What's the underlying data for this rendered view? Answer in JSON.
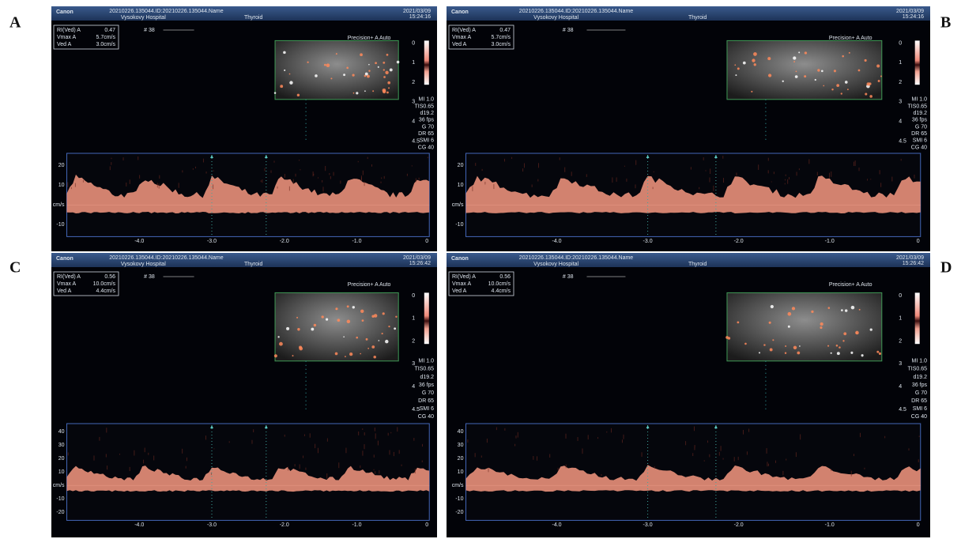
{
  "panels": [
    {
      "label": "A",
      "brand": "Canon",
      "patient": "20210226.135044.ID:20210226.135044.Name",
      "hospital": "Vysokovy Hospital",
      "exam": "Thyroid",
      "date": "2021/03/09",
      "time": "15:24:16",
      "scale": "# 38",
      "mode": "Precision+ A Auto",
      "readings": [
        [
          "RI(Ved) A",
          "0.47"
        ],
        [
          "Vmax A",
          "5.7cm/s"
        ],
        [
          "Ved A",
          "3.0cm/s"
        ]
      ],
      "depth": [
        "0",
        "1",
        "2",
        "3",
        "4",
        "4.5"
      ],
      "params": [
        "MI 1.0",
        "TIS0.65",
        "d19.2",
        "36 fps",
        "G 70",
        "DR 65",
        "SMI 6",
        "CG 40"
      ],
      "velocity": [
        "20",
        "10",
        "cm/s",
        "-10"
      ],
      "time_axis": [
        "-4.0",
        "-3.0",
        "-2.0",
        "-1.0",
        "0"
      ]
    },
    {
      "label": "B",
      "brand": "Canon",
      "patient": "20210226.135044.ID:20210226.135044.Name",
      "hospital": "Vysokovy Hospital",
      "exam": "Thyroid",
      "date": "2021/03/09",
      "time": "15:24:16",
      "scale": "# 38",
      "mode": "Precision+ A Auto",
      "readings": [
        [
          "RI(Ved) A",
          "0.47"
        ],
        [
          "Vmax A",
          "5.7cm/s"
        ],
        [
          "Ved A",
          "3.0cm/s"
        ]
      ],
      "depth": [
        "0",
        "1",
        "2",
        "3",
        "4",
        "4.5"
      ],
      "params": [
        "MI 1.0",
        "TIS0.65",
        "d19.2",
        "36 fps",
        "G 70",
        "DR 65",
        "SMI 6",
        "CG 40"
      ],
      "velocity": [
        "20",
        "10",
        "cm/s",
        "-10"
      ],
      "time_axis": [
        "-4.0",
        "-3.0",
        "-2.0",
        "-1.0",
        "0"
      ]
    },
    {
      "label": "C",
      "brand": "Canon",
      "patient": "20210226.135044.ID:20210226.135044.Name",
      "hospital": "Vysokovy Hospital",
      "exam": "Thyroid",
      "date": "2021/03/09",
      "time": "15:26:42",
      "scale": "# 38",
      "mode": "Precision+ A Auto",
      "readings": [
        [
          "RI(Ved) A",
          "0.56"
        ],
        [
          "Vmax A",
          "10.0cm/s"
        ],
        [
          "Ved A",
          "4.4cm/s"
        ]
      ],
      "depth": [
        "0",
        "1",
        "2",
        "3",
        "4",
        "4.5"
      ],
      "params": [
        "MI 1.0",
        "TIS0.65",
        "d19.2",
        "36 fps",
        "G 70",
        "DR 65",
        "SMI 6",
        "CG 40"
      ],
      "velocity": [
        "40",
        "30",
        "20",
        "10",
        "cm/s",
        "-10",
        "-20"
      ],
      "time_axis": [
        "-4.0",
        "-3.0",
        "-2.0",
        "-1.0",
        "0"
      ]
    },
    {
      "label": "D",
      "brand": "Canon",
      "patient": "20210226.135044.ID:20210226.135044.Name",
      "hospital": "Vysokovy Hospital",
      "exam": "Thyroid",
      "date": "2021/03/09",
      "time": "15:26:42",
      "scale": "# 38",
      "mode": "Precision+ A Auto",
      "readings": [
        [
          "RI(Ved) A",
          "0.56"
        ],
        [
          "Vmax A",
          "10.0cm/s"
        ],
        [
          "Ved A",
          "4.4cm/s"
        ]
      ],
      "depth": [
        "0",
        "1",
        "2",
        "3",
        "4",
        "4.5"
      ],
      "params": [
        "MI 1.0",
        "TIS0.65",
        "d19.2",
        "36 fps",
        "G 70",
        "DR 65",
        "SMI 6",
        "CG 40"
      ],
      "velocity": [
        "40",
        "30",
        "20",
        "10",
        "cm/s",
        "-10",
        "-20"
      ],
      "time_axis": [
        "-4.0",
        "-3.0",
        "-2.0",
        "-1.0",
        "0"
      ]
    }
  ]
}
